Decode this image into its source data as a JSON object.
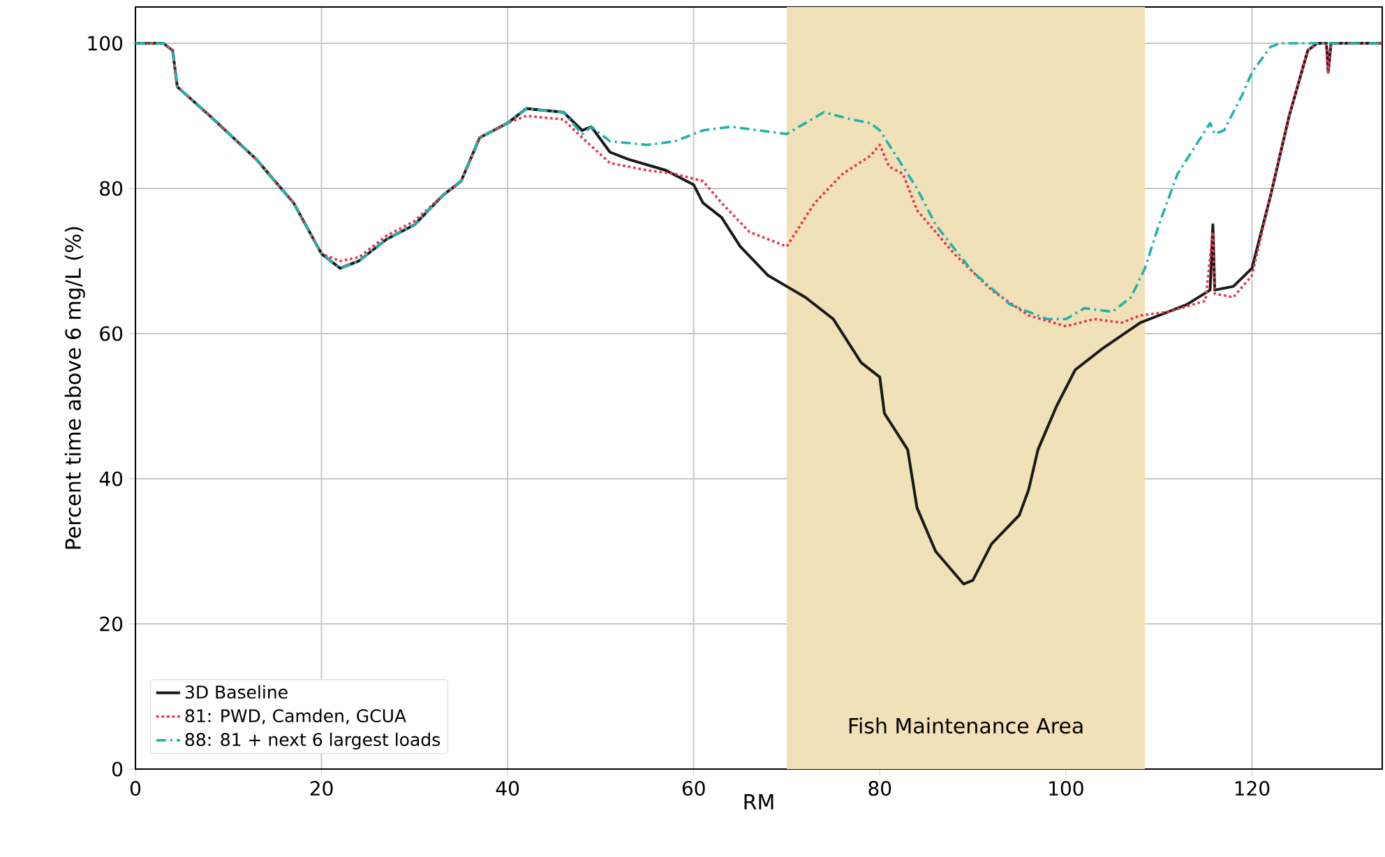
{
  "chart_data": {
    "type": "line",
    "xlabel": "RM",
    "ylabel": "Percent time above 6 mg/L (%)",
    "xlim": [
      0,
      134
    ],
    "ylim": [
      0,
      105
    ],
    "xticks": [
      0,
      20,
      40,
      60,
      80,
      100,
      120
    ],
    "yticks": [
      0,
      20,
      40,
      60,
      80,
      100
    ],
    "grid": true,
    "legend": "bottom left",
    "bands": [
      {
        "axis": "x",
        "from": 70,
        "to": 108.5,
        "label": "Fish Maintenance Area",
        "color": "#f1e1b8"
      }
    ],
    "series": [
      {
        "name": "3D Baseline",
        "color": "#1a1a1a",
        "line_style": "solid",
        "x": [
          0,
          3,
          4,
          4.5,
          8,
          13,
          15,
          17,
          20,
          22,
          24,
          27,
          30,
          33,
          35,
          37,
          40,
          42,
          46,
          48,
          49,
          51,
          53,
          57,
          60,
          61,
          63,
          65,
          68,
          70,
          72,
          75,
          78,
          80,
          80.5,
          83,
          84,
          86,
          89,
          90,
          92,
          95,
          96,
          97,
          99,
          101,
          104,
          108,
          110,
          113,
          115.5,
          115.8,
          116,
          118,
          120,
          122,
          124,
          126,
          127,
          128,
          128.2,
          128.5,
          134
        ],
        "values": [
          100,
          100,
          99,
          94,
          90,
          84,
          81,
          78,
          71,
          69,
          70,
          73,
          75,
          79,
          81,
          87,
          89,
          91,
          90.5,
          88,
          88.5,
          85,
          84,
          82.5,
          80.5,
          78,
          76,
          72,
          68,
          66.5,
          65,
          62,
          56,
          54,
          49,
          44,
          36,
          30,
          25.5,
          26,
          31,
          35,
          38.5,
          44,
          50,
          55,
          58,
          61.5,
          62.5,
          64,
          66,
          75,
          66,
          66.5,
          69,
          79,
          90,
          99,
          100,
          100,
          96,
          100,
          100
        ]
      },
      {
        "name": "81: PWD, Camden, GCUA",
        "color": "#e8344e",
        "line_style": "dotted",
        "x": [
          0,
          3,
          4,
          4.5,
          8,
          13,
          15,
          17,
          20,
          22,
          24,
          27,
          30,
          33,
          35,
          37,
          40,
          42,
          46,
          48,
          51,
          55,
          58,
          61,
          63,
          66,
          69,
          70,
          73,
          76,
          79,
          80,
          81,
          82.5,
          84,
          88,
          92,
          96,
          100,
          103,
          106,
          108,
          111,
          115,
          115.8,
          116,
          118,
          120,
          122,
          124,
          126,
          127,
          128,
          128.2,
          128.5,
          134
        ],
        "values": [
          100,
          100,
          99,
          94,
          90,
          84,
          81,
          78,
          71,
          70,
          70.5,
          73.5,
          75.5,
          79,
          81,
          87,
          89,
          90,
          89.5,
          87,
          83.5,
          82.5,
          82,
          81,
          78,
          74,
          72.5,
          72,
          78,
          82,
          84.5,
          86,
          83,
          82,
          77,
          71,
          66,
          62.5,
          61,
          62,
          61.5,
          62.5,
          63,
          64.5,
          74,
          65.5,
          65,
          68,
          79,
          90,
          99,
          100,
          100,
          96,
          100,
          100
        ]
      },
      {
        "name": "88: 81 + next 6 largest loads",
        "color": "#20b2aa",
        "line_style": "dashdot",
        "x": [
          0,
          3,
          4,
          4.5,
          8,
          13,
          15,
          17,
          20,
          22,
          24,
          27,
          30,
          33,
          35,
          37,
          40,
          42,
          46,
          48,
          49,
          51,
          55,
          58,
          61,
          64,
          67,
          70,
          72,
          74,
          77,
          79,
          80,
          82,
          84,
          86,
          90,
          94,
          98,
          100,
          102,
          105,
          107,
          108.5,
          110,
          112,
          114,
          115.5,
          116,
          117,
          119,
          120,
          122,
          123,
          134
        ],
        "values": [
          100,
          100,
          99,
          94,
          90,
          84,
          81,
          78,
          71,
          69,
          70,
          73,
          75,
          79,
          81,
          87,
          89,
          91,
          90.5,
          87.5,
          88.5,
          86.5,
          86,
          86.5,
          88,
          88.5,
          88,
          87.5,
          89,
          90.5,
          89.5,
          89,
          88,
          84,
          80,
          75,
          68.5,
          64,
          62,
          62,
          63.5,
          63,
          65,
          69,
          75,
          82,
          86,
          89,
          87.5,
          88,
          93,
          96,
          99.5,
          100,
          100
        ]
      }
    ]
  }
}
